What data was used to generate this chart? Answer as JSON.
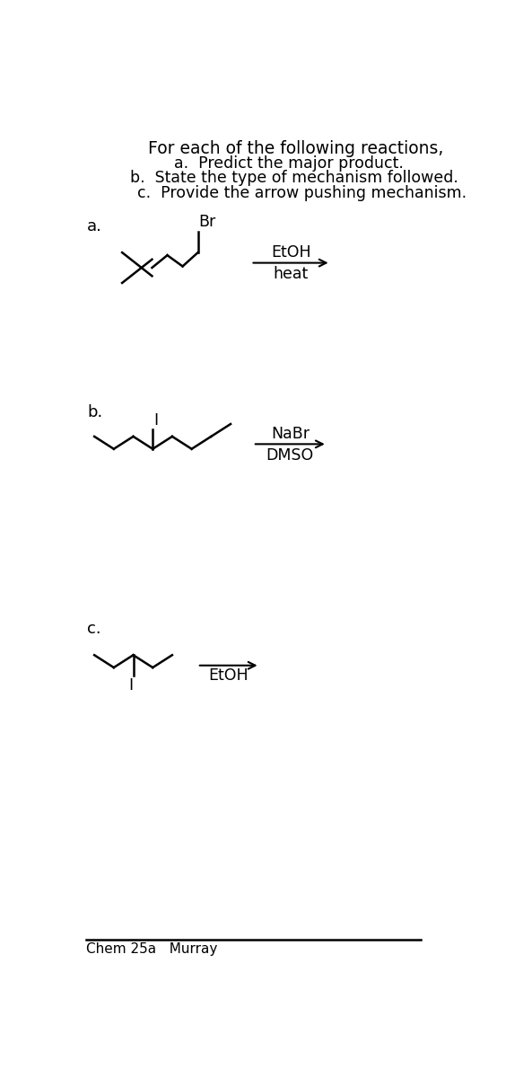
{
  "title_lines": [
    "For each of the following reactions,",
    "a.  Predict the major product.",
    "b.  State the type of mechanism followed.",
    "c.  Provide the arrow pushing mechanism."
  ],
  "footer": "Chem 25a   Murray",
  "background": "#ffffff",
  "text_color": "#000000",
  "label_a": "a.",
  "label_b": "b.",
  "label_c": "c.",
  "reagent_a_top": "EtOH",
  "reagent_a_bot": "heat",
  "reagent_b_top": "NaBr",
  "reagent_b_bot": "DMSO",
  "reagent_c": "EtOH"
}
